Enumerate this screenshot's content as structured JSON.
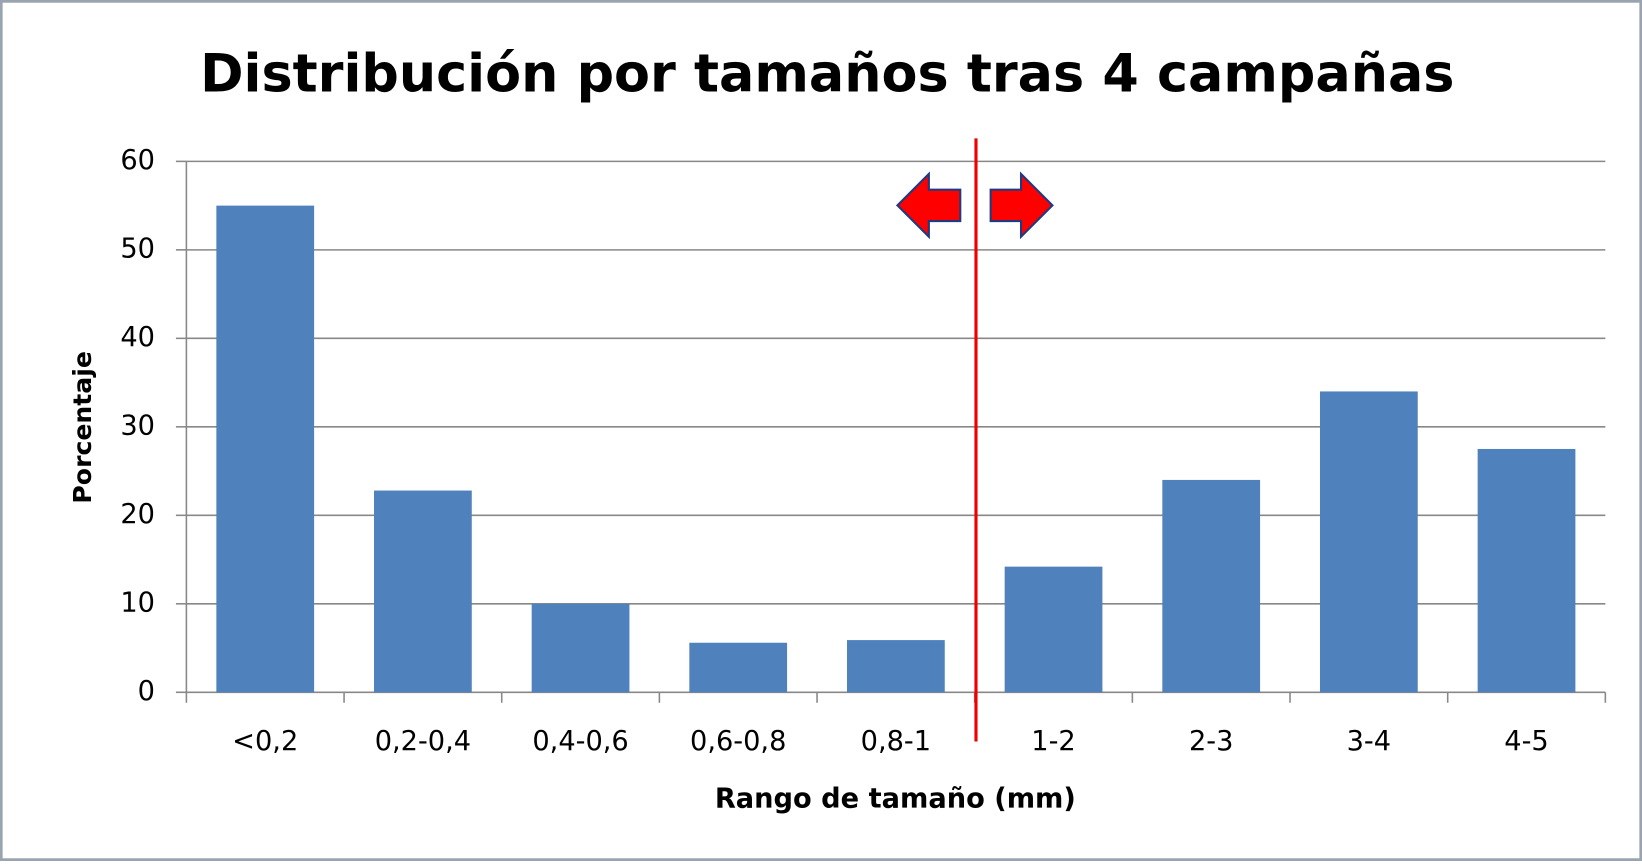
{
  "chart_data": {
    "type": "bar",
    "title": "Distribución por tamaños tras 4 campañas",
    "x_label": "Rango de tamaño (mm)",
    "y_label": "Porcentaje",
    "categories": [
      "<0,2",
      "0,2-0,4",
      "0,4-0,6",
      "0,6-0,8",
      "0,8-1",
      "1-2",
      "2-3",
      "3-4",
      "4-5"
    ],
    "values": [
      55,
      22.8,
      10,
      5.6,
      5.9,
      14.2,
      24,
      34,
      27.5
    ],
    "color": "#4f81bd",
    "ylim": [
      0,
      60
    ],
    "yticks": [
      0,
      10,
      20,
      30,
      40,
      50,
      60
    ],
    "grid": true
  }
}
